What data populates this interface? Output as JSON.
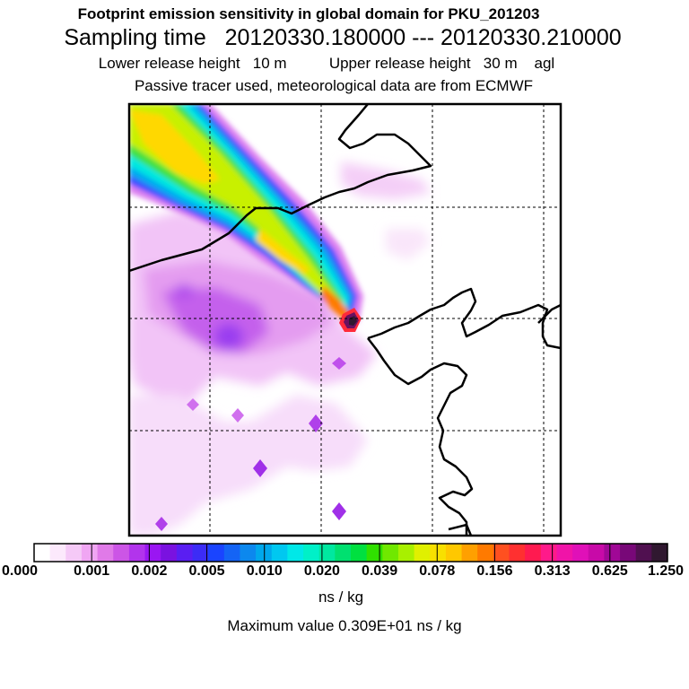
{
  "header": {
    "title": "Footprint emission sensitivity in global domain for PKU_201203",
    "sampling": "Sampling time   20120330.180000 --- 20120330.210000",
    "release": "Lower release height   10 m          Upper release height   30 m    agl",
    "tracer": "Passive tracer used, meteorological data are from ECMWF"
  },
  "legend": {
    "ticks": [
      "0.000",
      "0.001",
      "0.002",
      "0.005",
      "0.010",
      "0.020",
      "0.039",
      "0.078",
      "0.156",
      "0.313",
      "0.625",
      "1.250"
    ],
    "colors": [
      "#ffffff",
      "#fce9fc",
      "#f5c9f7",
      "#f0a6f3",
      "#e07ae8",
      "#cc55e6",
      "#b234ec",
      "#9a16f2",
      "#7a12e0",
      "#5a1ef2",
      "#3c2cf6",
      "#1a44ff",
      "#1464f5",
      "#0c88ee",
      "#00a8ec",
      "#00c8f0",
      "#00e8e8",
      "#00f0c8",
      "#00e8a0",
      "#00e070",
      "#00e040",
      "#30e000",
      "#70e800",
      "#a8f000",
      "#e0f000",
      "#f8e000",
      "#ffc800",
      "#ffa000",
      "#ff7a00",
      "#ff5020",
      "#ff3030",
      "#ff1a50",
      "#ff1a8a",
      "#f014a8",
      "#e010b8",
      "#c80aa8",
      "#a00896",
      "#780878",
      "#501050",
      "#301830"
    ],
    "unit": "ns / kg",
    "max_label": "Maximum value  0.309E+01 ns / kg"
  }
}
